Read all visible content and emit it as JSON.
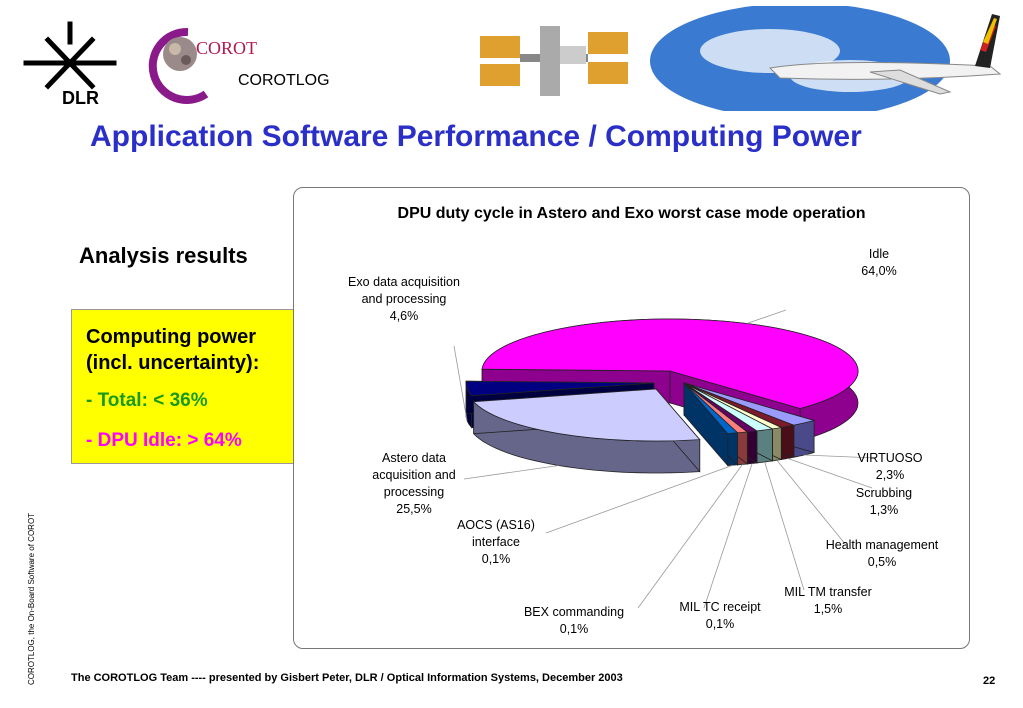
{
  "header": {
    "dlr_logo_text": "DLR",
    "corot_logo_text": "COROT",
    "corotlog_label": "COROTLOG"
  },
  "slide": {
    "title": "Application Software Performance / Computing Power",
    "analysis_heading": "Analysis results"
  },
  "summary_box": {
    "heading_line1": "Computing power",
    "heading_line2": "(incl. uncertainty):",
    "total_dash": "-",
    "total_text": "Total: < 36%",
    "idle_dash": "-",
    "idle_text": "DPU Idle: > 64%",
    "colors": {
      "background": "#ffff00",
      "total": "#1a9a1a",
      "idle": "#ff00ff"
    }
  },
  "chart_data": {
    "type": "pie",
    "title": "DPU duty cycle in Astero and Exo worst case mode operation",
    "slices": [
      {
        "label": [
          "Idle"
        ],
        "value_text": "64,0%",
        "value": 64.0,
        "color": "#ff00ff",
        "side": "#8e008e"
      },
      {
        "label": [
          "VIRTUOSO"
        ],
        "value_text": "2,3%",
        "value": 2.3,
        "color": "#9a9aff",
        "side": "#4a4a8a"
      },
      {
        "label": [
          "Scrubbing"
        ],
        "value_text": "1,3%",
        "value": 1.3,
        "color": "#7a1a2a",
        "side": "#4a0e18"
      },
      {
        "label": [
          "Health management"
        ],
        "value_text": "0,5%",
        "value": 0.5,
        "color": "#ffffcc",
        "side": "#8a8a66"
      },
      {
        "label": [
          "MIL TM transfer"
        ],
        "value_text": "1,5%",
        "value": 1.5,
        "color": "#ccffff",
        "side": "#5a8080"
      },
      {
        "label": [
          "MIL TC receipt"
        ],
        "value_text": "0,1%",
        "value": 0.1,
        "color": "#660066",
        "side": "#330033"
      },
      {
        "label": [
          "BEX commanding"
        ],
        "value_text": "0,1%",
        "value": 0.1,
        "color": "#ff7f7f",
        "side": "#8a3a3a"
      },
      {
        "label": [
          "AOCS (AS16)",
          "interface"
        ],
        "value_text": "0,1%",
        "value": 0.1,
        "color": "#0066cc",
        "side": "#003366"
      },
      {
        "label": [
          "Astero data",
          "acquisition and",
          "processing"
        ],
        "value_text": "25,5%",
        "value": 25.5,
        "color": "#ccccff",
        "side": "#66668a"
      },
      {
        "label": [
          "Exo data acquisition",
          "and processing"
        ],
        "value_text": "4,6%",
        "value": 4.6,
        "color": "#000080",
        "side": "#000040"
      }
    ]
  },
  "footer": {
    "side_text": "COROTLOG, the On-Board Software of COROT",
    "presenter": "The COROTLOG Team ---- presented by Gisbert Peter, DLR / Optical Information Systems, December 2003",
    "page_number": "22"
  }
}
